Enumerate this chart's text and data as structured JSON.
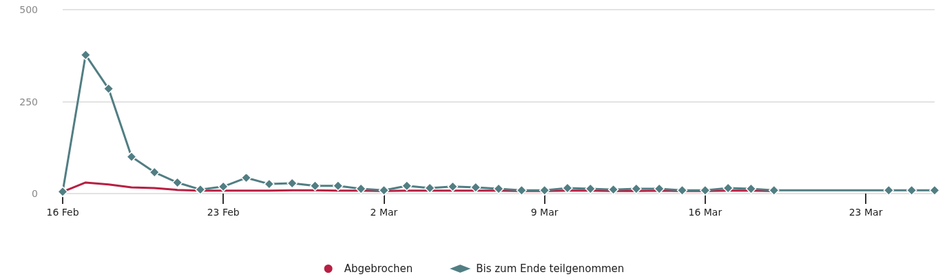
{
  "chart_data": {
    "type": "line",
    "x": [
      "--02-16",
      "--02-17",
      "--02-18",
      "--02-19",
      "--02-20",
      "--02-21",
      "--02-22",
      "--02-23",
      "--02-24",
      "--02-25",
      "--02-26",
      "--02-27",
      "--02-28",
      "--03-01",
      "--03-02",
      "--03-03",
      "--03-04",
      "--03-05",
      "--03-06",
      "--03-07",
      "--03-08",
      "--03-09",
      "--03-10",
      "--03-11",
      "--03-12",
      "--03-13",
      "--03-14",
      "--03-15",
      "--03-16",
      "--03-17",
      "--03-18",
      "--03-19",
      "--03-24",
      "--03-25",
      "--03-26"
    ],
    "series": [
      {
        "name": "Abgebrochen",
        "color": "#b81f42",
        "marker": "none",
        "values": [
          5,
          30,
          25,
          17,
          15,
          10,
          8,
          8,
          8,
          8,
          9,
          9,
          8,
          8,
          7,
          8,
          8,
          8,
          8,
          8,
          7,
          7,
          8,
          8,
          7,
          7,
          8,
          7,
          7,
          8,
          8,
          7,
          null,
          null,
          null
        ]
      },
      {
        "name": "Bis zum Ende teilgenommen",
        "color": "#517e83",
        "marker": "diamond",
        "values": [
          5,
          377,
          285,
          100,
          58,
          30,
          11,
          19,
          43,
          26,
          28,
          21,
          21,
          13,
          9,
          21,
          15,
          19,
          17,
          13,
          9,
          9,
          15,
          13,
          11,
          13,
          13,
          9,
          9,
          15,
          13,
          9,
          9,
          9,
          9
        ]
      }
    ],
    "xlim": [
      "--02-16",
      "--03-26"
    ],
    "xticks": [
      {
        "value": "--02-16",
        "label": "16 Feb"
      },
      {
        "value": "--02-23",
        "label": "23 Feb"
      },
      {
        "value": "--03-02",
        "label": "2 Mar"
      },
      {
        "value": "--03-09",
        "label": "9 Mar"
      },
      {
        "value": "--03-16",
        "label": "16 Mar"
      },
      {
        "value": "--03-23",
        "label": "23 Mar"
      }
    ],
    "ylim": [
      0,
      500
    ],
    "yticks": [
      0,
      250,
      500
    ],
    "grid": "y",
    "legend": "bottom",
    "line_style": "solid"
  }
}
